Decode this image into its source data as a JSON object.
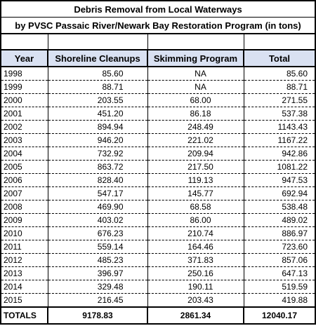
{
  "title_line1": "Debris Removal from Local Waterways",
  "title_line2": "by PVSC Passaic River/Newark Bay Restoration Program (in tons)",
  "columns": [
    "Year",
    "Shoreline Cleanups",
    "Skimming Program",
    "Total"
  ],
  "rows": [
    [
      "1998",
      "85.60",
      "NA",
      "85.60"
    ],
    [
      "1999",
      "88.71",
      "NA",
      "88.71"
    ],
    [
      "2000",
      "203.55",
      "68.00",
      "271.55"
    ],
    [
      "2001",
      "451.20",
      "86.18",
      "537.38"
    ],
    [
      "2002",
      "894.94",
      "248.49",
      "1143.43"
    ],
    [
      "2003",
      "946.20",
      "221.02",
      "1167.22"
    ],
    [
      "2004",
      "732.92",
      "209.94",
      "942.86"
    ],
    [
      "2005",
      "863.72",
      "217.50",
      "1081.22"
    ],
    [
      "2006",
      "828.40",
      "119.13",
      "947.53"
    ],
    [
      "2007",
      "547.17",
      "145.77",
      "692.94"
    ],
    [
      "2008",
      "469.90",
      "68.58",
      "538.48"
    ],
    [
      "2009",
      "403.02",
      "86.00",
      "489.02"
    ],
    [
      "2010",
      "676.23",
      "210.74",
      "886.97"
    ],
    [
      "2011",
      "559.14",
      "164.46",
      "723.60"
    ],
    [
      "2012",
      "485.23",
      "371.83",
      "857.06"
    ],
    [
      "2013",
      "396.97",
      "250.16",
      "647.13"
    ],
    [
      "2014",
      "329.48",
      "190.11",
      "519.59"
    ],
    [
      "2015",
      "216.45",
      "203.43",
      "419.88"
    ]
  ],
  "totals": [
    "TOTALS",
    "9178.83",
    "2861.34",
    "12040.17"
  ],
  "colors": {
    "header_bg": "#d9e1f2",
    "border": "#000000"
  }
}
